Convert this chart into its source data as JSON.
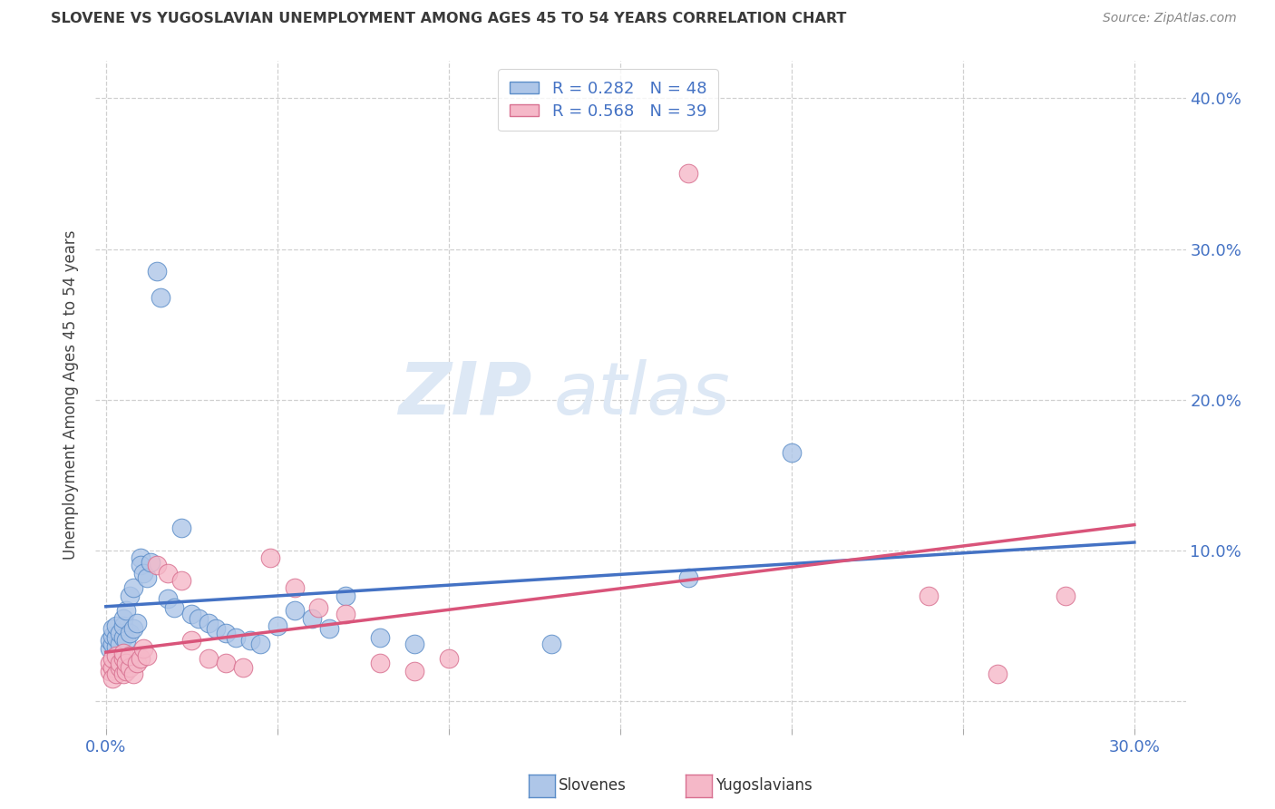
{
  "title": "SLOVENE VS YUGOSLAVIAN UNEMPLOYMENT AMONG AGES 45 TO 54 YEARS CORRELATION CHART",
  "source": "Source: ZipAtlas.com",
  "ylabel": "Unemployment Among Ages 45 to 54 years",
  "xlim": [
    -0.003,
    0.315
  ],
  "ylim": [
    -0.018,
    0.425
  ],
  "xtick_positions": [
    0.0,
    0.05,
    0.1,
    0.15,
    0.2,
    0.25,
    0.3
  ],
  "ytick_positions": [
    0.0,
    0.1,
    0.2,
    0.3,
    0.4
  ],
  "xtick_labels": [
    "0.0%",
    "",
    "",
    "",
    "",
    "",
    "30.0%"
  ],
  "ytick_right_labels": [
    "",
    "10.0%",
    "20.0%",
    "30.0%",
    "40.0%"
  ],
  "legend_R1": "R = 0.282",
  "legend_N1": "N = 48",
  "legend_R2": "R = 0.568",
  "legend_N2": "N = 39",
  "slovene_color": "#aec6e8",
  "slovene_edge": "#5b8dc8",
  "yugoslav_color": "#f5b8c8",
  "yugoslav_edge": "#d87090",
  "slovene_line_color": "#4472c4",
  "yugoslav_line_color": "#d9547a",
  "legend_text_color": "#4472c4",
  "title_color": "#3a3a3a",
  "grid_color": "#d0d0d0",
  "watermark_color": "#dde8f5",
  "bottom_legend_slovene": "Slovenes",
  "bottom_legend_yugoslav": "Yugoslavians",
  "slovene_x": [
    0.001,
    0.001,
    0.002,
    0.002,
    0.002,
    0.003,
    0.003,
    0.003,
    0.004,
    0.004,
    0.005,
    0.005,
    0.005,
    0.006,
    0.006,
    0.007,
    0.007,
    0.008,
    0.008,
    0.009,
    0.01,
    0.01,
    0.011,
    0.012,
    0.013,
    0.015,
    0.016,
    0.018,
    0.02,
    0.022,
    0.025,
    0.027,
    0.03,
    0.032,
    0.035,
    0.038,
    0.042,
    0.045,
    0.05,
    0.055,
    0.06,
    0.065,
    0.07,
    0.08,
    0.09,
    0.13,
    0.17,
    0.2
  ],
  "slovene_y": [
    0.035,
    0.04,
    0.038,
    0.043,
    0.048,
    0.036,
    0.042,
    0.05,
    0.038,
    0.045,
    0.042,
    0.05,
    0.055,
    0.04,
    0.06,
    0.045,
    0.07,
    0.048,
    0.075,
    0.052,
    0.095,
    0.09,
    0.085,
    0.082,
    0.092,
    0.285,
    0.268,
    0.068,
    0.062,
    0.115,
    0.058,
    0.055,
    0.052,
    0.048,
    0.045,
    0.042,
    0.04,
    0.038,
    0.05,
    0.06,
    0.055,
    0.048,
    0.07,
    0.042,
    0.038,
    0.038,
    0.082,
    0.165
  ],
  "yugoslav_x": [
    0.001,
    0.001,
    0.002,
    0.002,
    0.002,
    0.003,
    0.003,
    0.004,
    0.004,
    0.005,
    0.005,
    0.005,
    0.006,
    0.006,
    0.007,
    0.007,
    0.008,
    0.009,
    0.01,
    0.011,
    0.012,
    0.015,
    0.018,
    0.022,
    0.025,
    0.03,
    0.035,
    0.04,
    0.048,
    0.055,
    0.062,
    0.07,
    0.08,
    0.09,
    0.1,
    0.17,
    0.24,
    0.26,
    0.28
  ],
  "yugoslav_y": [
    0.02,
    0.025,
    0.022,
    0.028,
    0.015,
    0.018,
    0.03,
    0.022,
    0.025,
    0.018,
    0.028,
    0.032,
    0.02,
    0.025,
    0.022,
    0.03,
    0.018,
    0.025,
    0.028,
    0.035,
    0.03,
    0.09,
    0.085,
    0.08,
    0.04,
    0.028,
    0.025,
    0.022,
    0.095,
    0.075,
    0.062,
    0.058,
    0.025,
    0.02,
    0.028,
    0.35,
    0.07,
    0.018,
    0.07
  ]
}
